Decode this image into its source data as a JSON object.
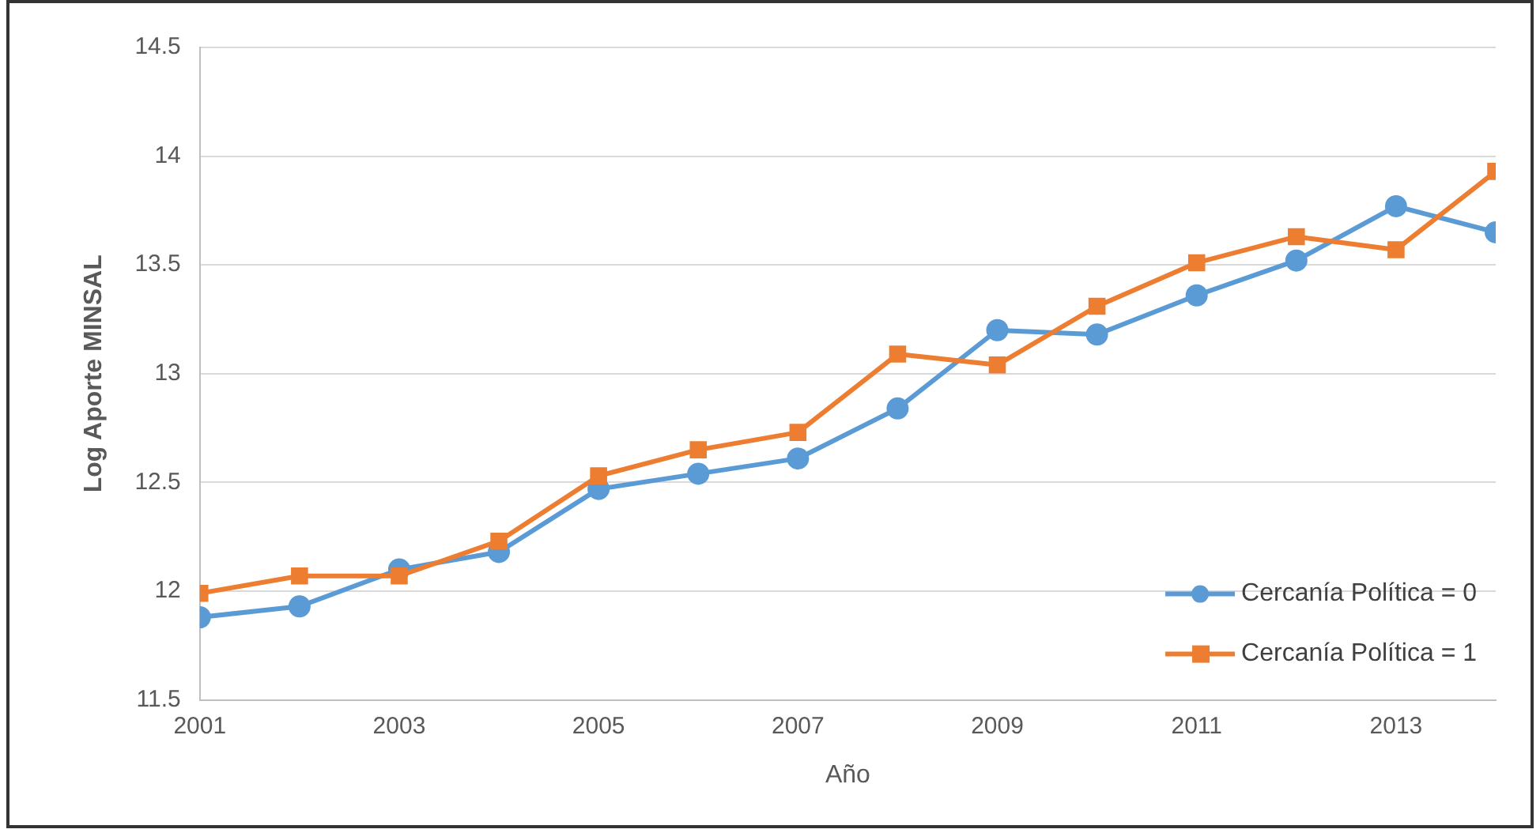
{
  "chart_data": {
    "type": "line",
    "xlabel": "Año",
    "ylabel": "Log Aporte MINSAL",
    "x": [
      2001,
      2002,
      2003,
      2004,
      2005,
      2006,
      2007,
      2008,
      2009,
      2010,
      2011,
      2012,
      2013,
      2014
    ],
    "series": [
      {
        "name": "Cercanía Política = 0",
        "color": "#5b9bd5",
        "marker": "circle",
        "values": [
          11.88,
          11.93,
          12.1,
          12.18,
          12.47,
          12.54,
          12.61,
          12.84,
          13.2,
          13.18,
          13.36,
          13.52,
          13.77,
          13.65
        ]
      },
      {
        "name": "Cercanía Política = 1",
        "color": "#ed7d31",
        "marker": "square",
        "values": [
          11.99,
          12.07,
          12.07,
          12.23,
          12.53,
          12.65,
          12.73,
          13.09,
          13.04,
          13.31,
          13.51,
          13.63,
          13.57,
          13.93
        ]
      }
    ],
    "xlim": [
      2001,
      2014
    ],
    "xticks": [
      2001,
      2003,
      2005,
      2007,
      2009,
      2011,
      2013
    ],
    "ylim": [
      11.5,
      14.5
    ],
    "yticks": [
      11.5,
      12,
      12.5,
      13,
      13.5,
      14,
      14.5
    ],
    "grid": "y",
    "legend": "bottom right",
    "line_style": "solid"
  }
}
